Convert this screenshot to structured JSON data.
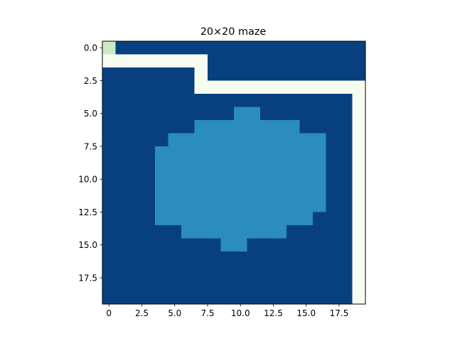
{
  "chart_data": {
    "type": "heatmap",
    "title": "20×20 maze",
    "xlabel": "",
    "ylabel": "",
    "xlim": [
      -0.5,
      19.5
    ],
    "ylim": [
      19.5,
      -0.5
    ],
    "x_ticks": [
      0.0,
      2.5,
      5.0,
      7.5,
      10.0,
      12.5,
      15.0,
      17.5
    ],
    "x_tick_labels": [
      "0",
      "2.5",
      "5.0",
      "7.5",
      "10.0",
      "12.5",
      "15.0",
      "17.5"
    ],
    "y_ticks": [
      0.0,
      2.5,
      5.0,
      7.5,
      10.0,
      12.5,
      15.0,
      17.5
    ],
    "y_tick_labels": [
      "0.0",
      "2.5",
      "5.0",
      "7.5",
      "10.0",
      "12.5",
      "15.0",
      "17.5"
    ],
    "grid": false,
    "legend": "none",
    "palette": {
      "0": "#f7fcf0",
      "1": "#ccebc5",
      "2": "#2b8cbe",
      "3": "#08407f"
    },
    "grid_values": [
      [
        1,
        3,
        3,
        3,
        3,
        3,
        3,
        3,
        3,
        3,
        3,
        3,
        3,
        3,
        3,
        3,
        3,
        3,
        3,
        3
      ],
      [
        0,
        0,
        0,
        0,
        0,
        0,
        0,
        0,
        3,
        3,
        3,
        3,
        3,
        3,
        3,
        3,
        3,
        3,
        3,
        3
      ],
      [
        3,
        3,
        3,
        3,
        3,
        3,
        3,
        0,
        3,
        3,
        3,
        3,
        3,
        3,
        3,
        3,
        3,
        3,
        3,
        3
      ],
      [
        3,
        3,
        3,
        3,
        3,
        3,
        3,
        0,
        0,
        0,
        0,
        0,
        0,
        0,
        0,
        0,
        0,
        0,
        0,
        0
      ],
      [
        3,
        3,
        3,
        3,
        3,
        3,
        3,
        3,
        3,
        3,
        3,
        3,
        3,
        3,
        3,
        3,
        3,
        3,
        3,
        0
      ],
      [
        3,
        3,
        3,
        3,
        3,
        3,
        3,
        3,
        3,
        3,
        2,
        2,
        3,
        3,
        3,
        3,
        3,
        3,
        3,
        0
      ],
      [
        3,
        3,
        3,
        3,
        3,
        3,
        3,
        2,
        2,
        2,
        2,
        2,
        2,
        2,
        2,
        3,
        3,
        3,
        3,
        0
      ],
      [
        3,
        3,
        3,
        3,
        3,
        2,
        2,
        2,
        2,
        2,
        2,
        2,
        2,
        2,
        2,
        2,
        2,
        3,
        3,
        0
      ],
      [
        3,
        3,
        3,
        3,
        2,
        2,
        2,
        2,
        2,
        2,
        2,
        2,
        2,
        2,
        2,
        2,
        2,
        3,
        3,
        0
      ],
      [
        3,
        3,
        3,
        3,
        2,
        2,
        2,
        2,
        2,
        2,
        2,
        2,
        2,
        2,
        2,
        2,
        2,
        3,
        3,
        0
      ],
      [
        3,
        3,
        3,
        3,
        2,
        2,
        2,
        2,
        2,
        2,
        2,
        2,
        2,
        2,
        2,
        2,
        2,
        3,
        3,
        0
      ],
      [
        3,
        3,
        3,
        3,
        2,
        2,
        2,
        2,
        2,
        2,
        2,
        2,
        2,
        2,
        2,
        2,
        2,
        3,
        3,
        0
      ],
      [
        3,
        3,
        3,
        3,
        2,
        2,
        2,
        2,
        2,
        2,
        2,
        2,
        2,
        2,
        2,
        2,
        2,
        3,
        3,
        0
      ],
      [
        3,
        3,
        3,
        3,
        2,
        2,
        2,
        2,
        2,
        2,
        2,
        2,
        2,
        2,
        2,
        2,
        3,
        3,
        3,
        0
      ],
      [
        3,
        3,
        3,
        3,
        3,
        3,
        2,
        2,
        2,
        2,
        2,
        2,
        2,
        2,
        3,
        3,
        3,
        3,
        3,
        0
      ],
      [
        3,
        3,
        3,
        3,
        3,
        3,
        3,
        3,
        3,
        2,
        2,
        3,
        3,
        3,
        3,
        3,
        3,
        3,
        3,
        0
      ],
      [
        3,
        3,
        3,
        3,
        3,
        3,
        3,
        3,
        3,
        3,
        3,
        3,
        3,
        3,
        3,
        3,
        3,
        3,
        3,
        0
      ],
      [
        3,
        3,
        3,
        3,
        3,
        3,
        3,
        3,
        3,
        3,
        3,
        3,
        3,
        3,
        3,
        3,
        3,
        3,
        3,
        0
      ],
      [
        3,
        3,
        3,
        3,
        3,
        3,
        3,
        3,
        3,
        3,
        3,
        3,
        3,
        3,
        3,
        3,
        3,
        3,
        3,
        0
      ],
      [
        3,
        3,
        3,
        3,
        3,
        3,
        3,
        3,
        3,
        3,
        3,
        3,
        3,
        3,
        3,
        3,
        3,
        3,
        3,
        0
      ]
    ]
  }
}
